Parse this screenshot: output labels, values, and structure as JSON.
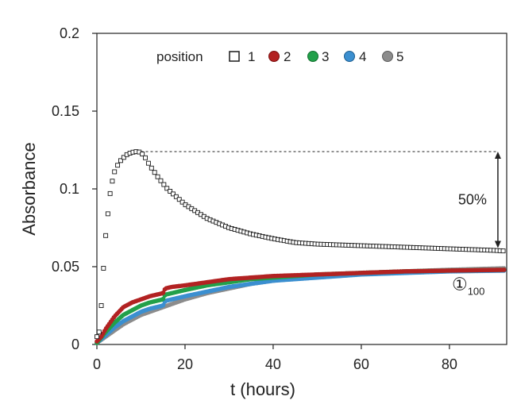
{
  "chart_data": {
    "type": "scatter",
    "title": "",
    "xlabel": "t (hours)",
    "ylabel": "Absorbance",
    "xlim": [
      0,
      93
    ],
    "ylim": [
      0,
      0.2
    ],
    "x_ticks": [
      0,
      20,
      40,
      60,
      80
    ],
    "x_tick_labels": [
      "0",
      "20",
      "40",
      "60",
      "80"
    ],
    "y_ticks": [
      0,
      0.05,
      0.1,
      0.15,
      0.2
    ],
    "y_tick_labels": [
      "0",
      "0.05",
      "0.1",
      "0.15",
      "0.2"
    ],
    "grid": false,
    "legend": {
      "title": "position",
      "placement": "top",
      "entries": [
        "1",
        "2",
        "3",
        "4",
        "5"
      ]
    },
    "series": [
      {
        "name": "1",
        "marker": "open-square",
        "color": "#1a1a1a",
        "x": [
          0,
          0.5,
          1,
          1.5,
          2,
          2.5,
          3,
          3.5,
          4,
          5,
          6,
          7,
          8,
          9,
          10,
          11,
          12,
          14,
          16,
          18,
          20,
          25,
          30,
          35,
          40,
          45,
          50,
          55,
          60,
          65,
          70,
          75,
          80,
          85,
          90,
          93
        ],
        "y": [
          0.005,
          0.008,
          0.025,
          0.049,
          0.07,
          0.084,
          0.097,
          0.105,
          0.111,
          0.117,
          0.12,
          0.1225,
          0.1235,
          0.124,
          0.1235,
          0.12,
          0.115,
          0.107,
          0.1,
          0.095,
          0.09,
          0.081,
          0.075,
          0.071,
          0.068,
          0.0655,
          0.0645,
          0.064,
          0.0635,
          0.063,
          0.0625,
          0.062,
          0.0615,
          0.061,
          0.0605,
          0.06
        ]
      },
      {
        "name": "2",
        "marker": "filled-circle",
        "color": "#b22222",
        "x": [
          0,
          1,
          2,
          3,
          4,
          5,
          6,
          8,
          10,
          12,
          15,
          15.5,
          17,
          20,
          25,
          30,
          35,
          40,
          50,
          60,
          70,
          80,
          93
        ],
        "y": [
          0.002,
          0.005,
          0.01,
          0.014,
          0.018,
          0.021,
          0.024,
          0.027,
          0.029,
          0.031,
          0.033,
          0.036,
          0.037,
          0.038,
          0.04,
          0.042,
          0.043,
          0.044,
          0.045,
          0.046,
          0.047,
          0.0475,
          0.048
        ]
      },
      {
        "name": "3",
        "marker": "filled-circle",
        "color": "#22a04a",
        "x": [
          0,
          2,
          4,
          6,
          8,
          10,
          12,
          15,
          15.5,
          20,
          25,
          30,
          35,
          40,
          50,
          60,
          70,
          80,
          93
        ],
        "y": [
          0.001,
          0.008,
          0.014,
          0.019,
          0.022,
          0.025,
          0.027,
          0.029,
          0.032,
          0.035,
          0.038,
          0.04,
          0.042,
          0.043,
          0.045,
          0.046,
          0.047,
          0.0475,
          0.048
        ]
      },
      {
        "name": "4",
        "marker": "filled-circle",
        "color": "#3b8fd0",
        "x": [
          0,
          2,
          4,
          6,
          8,
          10,
          12,
          15,
          15.5,
          20,
          25,
          30,
          35,
          40,
          50,
          60,
          70,
          80,
          93
        ],
        "y": [
          0.001,
          0.006,
          0.011,
          0.015,
          0.018,
          0.021,
          0.023,
          0.025,
          0.028,
          0.031,
          0.034,
          0.037,
          0.039,
          0.041,
          0.043,
          0.045,
          0.046,
          0.047,
          0.0475
        ]
      },
      {
        "name": "5",
        "marker": "filled-circle",
        "color": "#8c8c8c",
        "x": [
          0,
          2,
          4,
          6,
          8,
          10,
          12,
          15,
          20,
          25,
          30,
          35,
          40,
          50,
          60,
          70,
          80,
          93
        ],
        "y": [
          0.001,
          0.005,
          0.009,
          0.013,
          0.016,
          0.019,
          0.021,
          0.024,
          0.029,
          0.033,
          0.036,
          0.039,
          0.041,
          0.044,
          0.046,
          0.047,
          0.048,
          0.049
        ]
      }
    ],
    "annotations": [
      {
        "text": "50%",
        "type": "double-arrow",
        "x": 91,
        "y_from": 0.124,
        "y_to": 0.062
      },
      {
        "type": "dashed-line",
        "x_from": 10,
        "x_to": 91,
        "y": 0.124
      },
      {
        "text": "①",
        "subscript": "100",
        "x": 82,
        "y": 0.037
      }
    ],
    "colors": {
      "axis": "#222222",
      "text": "#222222"
    }
  }
}
